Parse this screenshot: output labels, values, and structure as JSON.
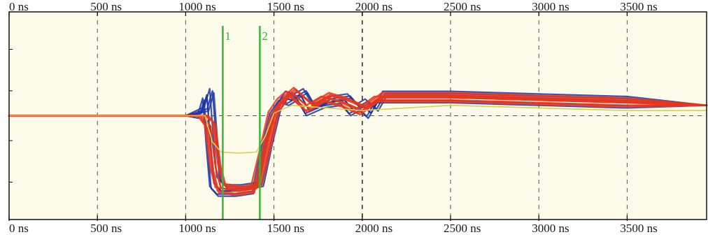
{
  "chart_data": {
    "type": "line",
    "title": "",
    "xlabel": "",
    "ylabel": "",
    "x_unit": "ns",
    "xlim": [
      0,
      3950
    ],
    "ylim": [
      -2,
      2
    ],
    "x_ticks": [
      {
        "value": 0,
        "label": "0 ns"
      },
      {
        "value": 500,
        "label": "500 ns"
      },
      {
        "value": 1000,
        "label": "1000 ns"
      },
      {
        "value": 1500,
        "label": "1500 ns"
      },
      {
        "value": 2000,
        "label": "2000 ns"
      },
      {
        "value": 2500,
        "label": "2500 ns"
      },
      {
        "value": 3000,
        "label": "3000 ns"
      },
      {
        "value": 3500,
        "label": "3500 ns"
      }
    ],
    "grid": true,
    "background": "#fdfbe9",
    "cursors": [
      {
        "label": "1",
        "x": 1210,
        "color": "#38b43a"
      },
      {
        "label": "2",
        "x": 1420,
        "color": "#38b43a"
      }
    ],
    "series": [
      {
        "color": "#1a35a8",
        "role": "blue-traces",
        "x": [
          0,
          1000,
          1090,
          1120,
          1140,
          1160,
          1200,
          1300,
          1400,
          1450,
          1500,
          1550,
          1600,
          1650,
          1700,
          1800,
          1900,
          1950,
          2000,
          2050,
          2100,
          2500,
          3000,
          3500,
          3950
        ],
        "y": [
          0,
          0,
          0.05,
          0.4,
          -0.5,
          -1.3,
          -1.45,
          -1.45,
          -1.4,
          -0.6,
          0.1,
          0.35,
          0.3,
          0.4,
          0.1,
          0.25,
          0.3,
          0.1,
          0.2,
          0.05,
          0.35,
          0.35,
          0.3,
          0.25,
          0.2
        ]
      },
      {
        "color": "#e8361c",
        "role": "red-traces",
        "x": [
          0,
          1000,
          1100,
          1140,
          1170,
          1200,
          1300,
          1400,
          1450,
          1500,
          1550,
          1600,
          1700,
          1800,
          1900,
          2000,
          2100,
          2500,
          3000,
          3500,
          3950
        ],
        "y": [
          0,
          0,
          0,
          -0.2,
          -1.0,
          -1.4,
          -1.45,
          -1.4,
          -0.7,
          0.05,
          0.3,
          0.45,
          0.15,
          0.35,
          0.25,
          0.1,
          0.35,
          0.35,
          0.3,
          0.25,
          0.2
        ]
      },
      {
        "color": "#d8d04a",
        "role": "yellow-trace",
        "x": [
          0,
          1000,
          1110,
          1150,
          1200,
          1300,
          1400,
          1450,
          1500,
          1600,
          1800,
          2000,
          2500,
          3000,
          3500,
          3950
        ],
        "y": [
          0,
          0,
          0,
          -0.5,
          -0.7,
          -0.72,
          -0.7,
          -0.4,
          0.05,
          0.2,
          0.15,
          0.1,
          0.2,
          0.15,
          0.1,
          0.1
        ]
      }
    ]
  }
}
